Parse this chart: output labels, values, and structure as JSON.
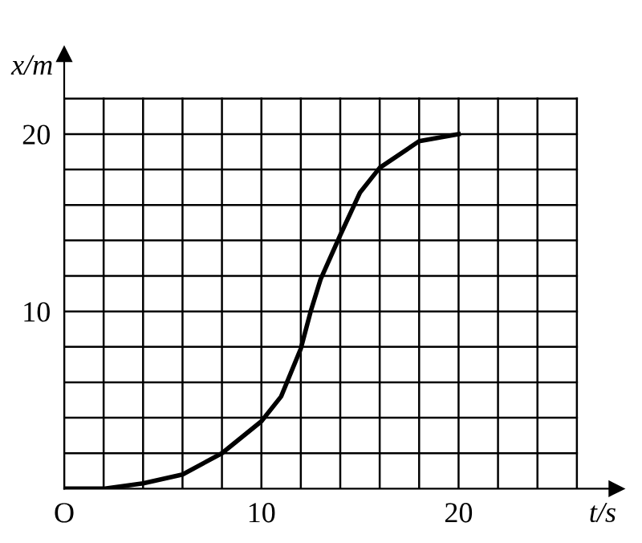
{
  "chart_data": {
    "type": "line",
    "xlabel": "t/s",
    "ylabel": "x/m",
    "x": [
      0,
      2,
      4,
      6,
      8,
      10,
      11,
      12,
      12.5,
      13,
      14,
      15,
      16,
      18,
      20
    ],
    "values": [
      0,
      0,
      0.3,
      0.8,
      2,
      3.8,
      5.2,
      7.9,
      10,
      11.8,
      14.3,
      16.7,
      18.1,
      19.6,
      20
    ],
    "color": "#000000",
    "line_style": "solid",
    "marker": "none",
    "xlim": [
      0,
      28
    ],
    "ylim": [
      0,
      24.5
    ],
    "xticks": [
      {
        "value": 0,
        "label": "O"
      },
      {
        "value": 2,
        "label": null
      },
      {
        "value": 4,
        "label": null
      },
      {
        "value": 6,
        "label": null
      },
      {
        "value": 8,
        "label": null
      },
      10,
      {
        "value": 12,
        "label": null
      },
      {
        "value": 14,
        "label": null
      },
      {
        "value": 16,
        "label": null
      },
      {
        "value": 18,
        "label": null
      },
      20,
      {
        "value": 22,
        "label": null
      },
      {
        "value": 24,
        "label": null
      },
      {
        "value": 26,
        "label": null
      }
    ],
    "yticks": [
      {
        "value": 2,
        "label": null
      },
      {
        "value": 4,
        "label": null
      },
      {
        "value": 6,
        "label": null
      },
      {
        "value": 8,
        "label": null
      },
      10,
      {
        "value": 12,
        "label": null
      },
      {
        "value": 14,
        "label": null
      },
      {
        "value": 16,
        "label": null
      },
      {
        "value": 18,
        "label": null
      },
      20,
      {
        "value": 22,
        "label": null
      }
    ],
    "grid": true
  }
}
